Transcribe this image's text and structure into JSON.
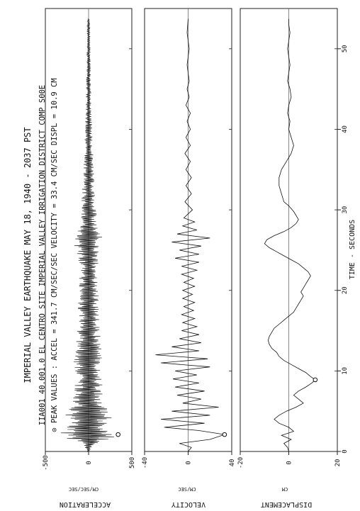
{
  "chart_data": {
    "type": "line",
    "header": {
      "title": "IMPERIAL VALLEY EARTHQUAKE    MAY 18, 1940 - 2037 PST",
      "line2": "IIA001 40.001.0    EL CENTRO SITE IMPERIAL VALLEY IRRIGATION DISTRICT    COMP S00E",
      "line3": "⊙ PEAK VALUES :   ACCEL = 341.7 CM/SEC/SEC     VELOCITY = 33.4 CM/SEC     DISPL = 10.9 CM"
    },
    "time_axis": {
      "label": "TIME - SECONDS",
      "ticks": [
        0,
        10,
        20,
        30,
        40,
        50
      ],
      "range": [
        0,
        55
      ]
    },
    "panels": [
      {
        "name": "acceleration",
        "ylabel": "ACCELERATION",
        "yunit": "CM/SEC/SEC",
        "ylim": [
          -500,
          500
        ],
        "ticks": [
          -500,
          0,
          500
        ],
        "peak": {
          "t": 2.1,
          "value": 341.7
        },
        "envelope": [
          [
            0,
            20
          ],
          [
            0.8,
            60
          ],
          [
            1.3,
            180
          ],
          [
            1.8,
            300
          ],
          [
            2.1,
            340
          ],
          [
            2.6,
            300
          ],
          [
            3.2,
            240
          ],
          [
            4.0,
            260
          ],
          [
            4.6,
            300
          ],
          [
            5.2,
            230
          ],
          [
            6.0,
            190
          ],
          [
            7.0,
            170
          ],
          [
            8.0,
            180
          ],
          [
            9.0,
            170
          ],
          [
            10.0,
            160
          ],
          [
            11.0,
            190
          ],
          [
            12.0,
            150
          ],
          [
            13.0,
            150
          ],
          [
            14.0,
            140
          ],
          [
            15.0,
            140
          ],
          [
            16.0,
            130
          ],
          [
            17.0,
            130
          ],
          [
            18.0,
            125
          ],
          [
            19.0,
            120
          ],
          [
            20.0,
            120
          ],
          [
            21.0,
            110
          ],
          [
            22.0,
            110
          ],
          [
            23.0,
            110
          ],
          [
            24.0,
            120
          ],
          [
            25.0,
            150
          ],
          [
            26.0,
            190
          ],
          [
            26.8,
            160
          ],
          [
            28.0,
            110
          ],
          [
            30.0,
            90
          ],
          [
            32.0,
            80
          ],
          [
            35.0,
            60
          ],
          [
            38.0,
            50
          ],
          [
            42.0,
            35
          ],
          [
            46.0,
            28
          ],
          [
            50.0,
            22
          ],
          [
            53.7,
            15
          ]
        ]
      },
      {
        "name": "velocity",
        "ylabel": "VELOCITY",
        "yunit": "CM/SEC",
        "ylim": [
          -40,
          40
        ],
        "ticks": [
          -40,
          0,
          40
        ],
        "peak": {
          "t": 2.1,
          "value": 33.4
        },
        "points": [
          [
            0,
            0
          ],
          [
            0.5,
            3
          ],
          [
            1.0,
            -8
          ],
          [
            1.5,
            20
          ],
          [
            2.1,
            33.4
          ],
          [
            2.6,
            10
          ],
          [
            3.0,
            -22
          ],
          [
            3.5,
            15
          ],
          [
            4.0,
            -25
          ],
          [
            4.5,
            20
          ],
          [
            5.0,
            -15
          ],
          [
            5.5,
            28
          ],
          [
            6.0,
            -5
          ],
          [
            6.5,
            12
          ],
          [
            7.0,
            -10
          ],
          [
            7.5,
            15
          ],
          [
            8.0,
            -12
          ],
          [
            8.5,
            10
          ],
          [
            9.0,
            -14
          ],
          [
            9.5,
            8
          ],
          [
            10.0,
            -12
          ],
          [
            10.5,
            20
          ],
          [
            11.0,
            -25
          ],
          [
            11.5,
            18
          ],
          [
            12.0,
            -30
          ],
          [
            12.5,
            10
          ],
          [
            13.0,
            -15
          ],
          [
            13.5,
            12
          ],
          [
            14.0,
            -8
          ],
          [
            14.5,
            10
          ],
          [
            15.0,
            -6
          ],
          [
            15.5,
            8
          ],
          [
            16.0,
            -5
          ],
          [
            16.5,
            6
          ],
          [
            17.0,
            -6
          ],
          [
            17.5,
            5
          ],
          [
            18.0,
            -4
          ],
          [
            18.5,
            6
          ],
          [
            19.0,
            -5
          ],
          [
            19.5,
            4
          ],
          [
            20.0,
            -5
          ],
          [
            20.5,
            6
          ],
          [
            21.0,
            -4
          ],
          [
            21.5,
            5
          ],
          [
            22.0,
            -6
          ],
          [
            22.5,
            8
          ],
          [
            23.0,
            -6
          ],
          [
            23.5,
            10
          ],
          [
            24.0,
            -12
          ],
          [
            24.5,
            10
          ],
          [
            25.0,
            -8
          ],
          [
            25.5,
            12
          ],
          [
            26.0,
            -15
          ],
          [
            26.5,
            20
          ],
          [
            27.0,
            -10
          ],
          [
            27.5,
            8
          ],
          [
            28.0,
            -5
          ],
          [
            28.5,
            6
          ],
          [
            29.0,
            -4
          ],
          [
            30.0,
            4
          ],
          [
            31.0,
            -3
          ],
          [
            32.0,
            3
          ],
          [
            33.0,
            -2
          ],
          [
            34.0,
            3
          ],
          [
            35.0,
            -2
          ],
          [
            36.0,
            2
          ],
          [
            37.0,
            -3
          ],
          [
            38.0,
            2
          ],
          [
            39.0,
            -2
          ],
          [
            40.0,
            2
          ],
          [
            41.0,
            -1
          ],
          [
            42.0,
            2
          ],
          [
            43.0,
            -2
          ],
          [
            44.0,
            1
          ],
          [
            45.0,
            -1
          ],
          [
            46.0,
            1
          ],
          [
            48.0,
            -1
          ],
          [
            50.0,
            1
          ],
          [
            52.0,
            -1
          ],
          [
            53.7,
            0
          ]
        ]
      },
      {
        "name": "displacement",
        "ylabel": "DISPLACEMENT",
        "yunit": "CM",
        "ylim": [
          -20,
          20
        ],
        "ticks": [
          -20,
          0,
          20
        ],
        "peak": {
          "t": 8.9,
          "value": 10.9
        },
        "points": [
          [
            0,
            0
          ],
          [
            0.5,
            -0.5
          ],
          [
            1.0,
            -2
          ],
          [
            1.5,
            1
          ],
          [
            2.0,
            -3
          ],
          [
            2.5,
            2
          ],
          [
            3.0,
            0
          ],
          [
            3.5,
            -4
          ],
          [
            4.0,
            -6
          ],
          [
            4.5,
            -4
          ],
          [
            5.0,
            -1
          ],
          [
            5.5,
            3
          ],
          [
            6.0,
            6
          ],
          [
            6.5,
            4
          ],
          [
            7.0,
            2
          ],
          [
            7.5,
            4
          ],
          [
            8.0,
            7
          ],
          [
            8.5,
            9.5
          ],
          [
            8.9,
            10.9
          ],
          [
            9.3,
            9
          ],
          [
            9.8,
            7
          ],
          [
            10.3,
            4
          ],
          [
            10.8,
            1
          ],
          [
            11.3,
            -2
          ],
          [
            11.8,
            -4
          ],
          [
            12.3,
            -5
          ],
          [
            12.8,
            -7
          ],
          [
            13.3,
            -8
          ],
          [
            13.8,
            -8.5
          ],
          [
            14.3,
            -8
          ],
          [
            14.8,
            -7
          ],
          [
            15.3,
            -6
          ],
          [
            15.8,
            -4
          ],
          [
            16.3,
            -2
          ],
          [
            16.8,
            0
          ],
          [
            17.3,
            2
          ],
          [
            17.8,
            3
          ],
          [
            18.3,
            4
          ],
          [
            18.8,
            5
          ],
          [
            19.3,
            6
          ],
          [
            19.8,
            5
          ],
          [
            20.3,
            6
          ],
          [
            20.8,
            7
          ],
          [
            21.3,
            8
          ],
          [
            21.8,
            9
          ],
          [
            22.3,
            8
          ],
          [
            22.8,
            6
          ],
          [
            23.3,
            4
          ],
          [
            23.8,
            1
          ],
          [
            24.3,
            -2
          ],
          [
            24.8,
            -5
          ],
          [
            25.3,
            -8
          ],
          [
            25.8,
            -10
          ],
          [
            26.3,
            -9
          ],
          [
            26.8,
            -6
          ],
          [
            27.3,
            -2
          ],
          [
            27.8,
            1
          ],
          [
            28.3,
            3
          ],
          [
            28.8,
            4
          ],
          [
            29.3,
            3
          ],
          [
            29.8,
            2
          ],
          [
            30.5,
            0
          ],
          [
            31.0,
            -2
          ],
          [
            32.0,
            -3
          ],
          [
            33.0,
            -4
          ],
          [
            34.0,
            -4
          ],
          [
            35.0,
            -3
          ],
          [
            36.0,
            -1
          ],
          [
            37.0,
            1
          ],
          [
            38.0,
            2
          ],
          [
            39.0,
            1
          ],
          [
            40.0,
            0
          ],
          [
            41.0,
            0.5
          ],
          [
            42.0,
            -0.5
          ],
          [
            43.0,
            0
          ],
          [
            44.0,
            1
          ],
          [
            45.0,
            0.5
          ],
          [
            46.0,
            -0.5
          ],
          [
            47.0,
            0
          ],
          [
            48.0,
            0.5
          ],
          [
            49.0,
            0
          ],
          [
            50.0,
            -0.5
          ],
          [
            51.0,
            0
          ],
          [
            52.0,
            0.5
          ],
          [
            53.0,
            0
          ],
          [
            53.7,
            0
          ]
        ]
      }
    ]
  }
}
